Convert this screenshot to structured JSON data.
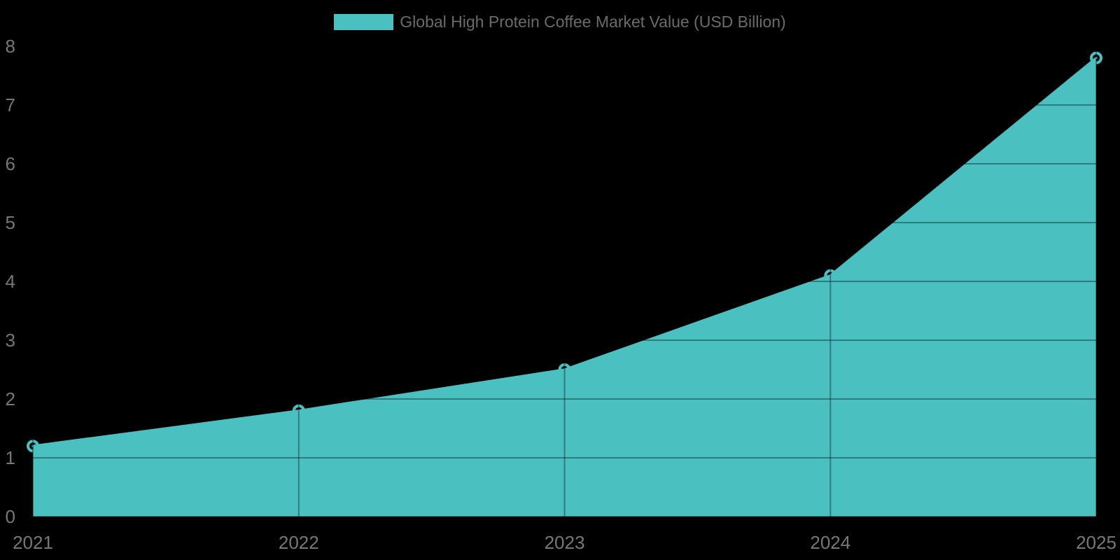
{
  "chart_data": {
    "type": "area",
    "categories": [
      "2021",
      "2022",
      "2023",
      "2024",
      "2025"
    ],
    "series": [
      {
        "name": "Global High Protein Coffee Market Value (USD Billion)",
        "values": [
          1.2,
          1.8,
          2.5,
          4.1,
          7.8
        ]
      }
    ],
    "ylim": [
      0,
      8
    ],
    "yticks": [
      0,
      1,
      2,
      3,
      4,
      5,
      6,
      7,
      8
    ],
    "grid": true,
    "legend_position": "top-center",
    "markers": true,
    "colors": {
      "series": "#4bc0c0",
      "background": "#000000",
      "tick_label": "#777777",
      "legend_text": "#6b6b6b",
      "grid_overlay": "rgba(0,0,0,0.35)"
    }
  }
}
